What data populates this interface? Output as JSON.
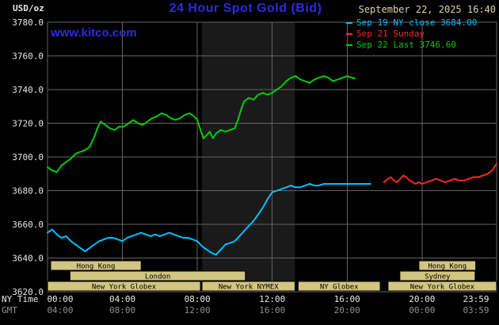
{
  "colors": {
    "background": "#000000",
    "title_blue": "#2b2bdf",
    "brand_blue": "#2b2bdf",
    "date_tan": "#d9d2ae",
    "grid": "#636363",
    "axis_text": "#e8e8e8",
    "gmt_text": "#8f8f8f",
    "session_fill": "#d2c57f",
    "session_text": "#000000",
    "shaded_band": "#1a1a1a"
  },
  "header": {
    "units_label": "USD/oz",
    "title": "24 Hour Spot Gold (Bid)",
    "datetime": "September 22, 2025 16:40",
    "watermark": "www.kitco.com"
  },
  "legend": {
    "items": [
      {
        "label": "Sep 19 NY close 3684.00",
        "color": "#00bfff"
      },
      {
        "label": "Sep 21 Sunday",
        "color": "#ff2626"
      },
      {
        "label": "Sep 22 Last 3746.60",
        "color": "#00cc00"
      }
    ]
  },
  "axis": {
    "ny_label": "NY Time",
    "gmt_label": "GMT",
    "ny_ticks": [
      "00:00",
      "04:00",
      "08:00",
      "12:00",
      "16:00",
      "20:00",
      "23:59"
    ],
    "gmt_ticks": [
      "04:00",
      "08:00",
      "12:00",
      "16:00",
      "20:00",
      "00:00",
      "03:59"
    ]
  },
  "chart_data": {
    "type": "line",
    "title": "24 Hour Spot Gold (Bid)",
    "ylabel": "USD/oz",
    "ylim": [
      3620,
      3780
    ],
    "y_ticks": [
      3620,
      3640,
      3660,
      3680,
      3700,
      3720,
      3740,
      3760,
      3780
    ],
    "x_range_minutes": [
      0,
      1439
    ],
    "x_tick_minutes": [
      0,
      240,
      480,
      720,
      960,
      1200,
      1439
    ],
    "grid": true,
    "legend_position": "top-right",
    "shaded_band_minutes": [
      495,
      793
    ],
    "series": [
      {
        "name": "Sep 19 NY close 3684.00",
        "color": "#00bfff",
        "close": 3684.0,
        "points": [
          [
            0,
            3655
          ],
          [
            15,
            3657
          ],
          [
            30,
            3654
          ],
          [
            45,
            3652
          ],
          [
            60,
            3653
          ],
          [
            75,
            3650
          ],
          [
            90,
            3648
          ],
          [
            105,
            3646
          ],
          [
            120,
            3644
          ],
          [
            135,
            3646
          ],
          [
            150,
            3648
          ],
          [
            165,
            3650
          ],
          [
            180,
            3651
          ],
          [
            195,
            3652
          ],
          [
            210,
            3652
          ],
          [
            225,
            3651
          ],
          [
            240,
            3650
          ],
          [
            255,
            3652
          ],
          [
            270,
            3653
          ],
          [
            285,
            3654
          ],
          [
            300,
            3655
          ],
          [
            315,
            3654
          ],
          [
            330,
            3653
          ],
          [
            345,
            3654
          ],
          [
            360,
            3653
          ],
          [
            375,
            3654
          ],
          [
            390,
            3655
          ],
          [
            405,
            3654
          ],
          [
            420,
            3653
          ],
          [
            435,
            3652
          ],
          [
            450,
            3652
          ],
          [
            465,
            3651
          ],
          [
            480,
            3650
          ],
          [
            495,
            3647
          ],
          [
            510,
            3645
          ],
          [
            525,
            3643
          ],
          [
            540,
            3642
          ],
          [
            555,
            3645
          ],
          [
            570,
            3648
          ],
          [
            585,
            3649
          ],
          [
            600,
            3650
          ],
          [
            615,
            3653
          ],
          [
            630,
            3656
          ],
          [
            645,
            3659
          ],
          [
            660,
            3662
          ],
          [
            675,
            3666
          ],
          [
            690,
            3670
          ],
          [
            705,
            3675
          ],
          [
            720,
            3679
          ],
          [
            735,
            3680
          ],
          [
            750,
            3681
          ],
          [
            765,
            3682
          ],
          [
            780,
            3683
          ],
          [
            795,
            3682
          ],
          [
            810,
            3682
          ],
          [
            825,
            3683
          ],
          [
            840,
            3684
          ],
          [
            855,
            3683
          ],
          [
            870,
            3683
          ],
          [
            885,
            3684
          ],
          [
            900,
            3684
          ],
          [
            915,
            3684
          ],
          [
            930,
            3684
          ],
          [
            945,
            3684
          ],
          [
            960,
            3684
          ],
          [
            980,
            3684
          ],
          [
            1000,
            3684
          ],
          [
            1020,
            3684
          ],
          [
            1035,
            3684
          ]
        ]
      },
      {
        "name": "Sep 21 Sunday",
        "color": "#ff2626",
        "points": [
          [
            1078,
            3685
          ],
          [
            1090,
            3687
          ],
          [
            1100,
            3688
          ],
          [
            1110,
            3686
          ],
          [
            1120,
            3685
          ],
          [
            1130,
            3687
          ],
          [
            1140,
            3689
          ],
          [
            1150,
            3688
          ],
          [
            1160,
            3686
          ],
          [
            1170,
            3685
          ],
          [
            1180,
            3684
          ],
          [
            1190,
            3685
          ],
          [
            1200,
            3684
          ],
          [
            1215,
            3685
          ],
          [
            1230,
            3686
          ],
          [
            1245,
            3687
          ],
          [
            1260,
            3686
          ],
          [
            1275,
            3685
          ],
          [
            1290,
            3686
          ],
          [
            1305,
            3687
          ],
          [
            1320,
            3686
          ],
          [
            1335,
            3686
          ],
          [
            1350,
            3687
          ],
          [
            1365,
            3688
          ],
          [
            1380,
            3688
          ],
          [
            1395,
            3689
          ],
          [
            1410,
            3690
          ],
          [
            1425,
            3692
          ],
          [
            1439,
            3696
          ]
        ]
      },
      {
        "name": "Sep 22 Last 3746.60",
        "color": "#00cc00",
        "last": 3746.6,
        "points": [
          [
            0,
            3694
          ],
          [
            15,
            3692
          ],
          [
            30,
            3691
          ],
          [
            45,
            3695
          ],
          [
            60,
            3697
          ],
          [
            75,
            3699
          ],
          [
            90,
            3702
          ],
          [
            105,
            3703
          ],
          [
            120,
            3704
          ],
          [
            135,
            3706
          ],
          [
            150,
            3712
          ],
          [
            160,
            3717
          ],
          [
            170,
            3721
          ],
          [
            185,
            3719
          ],
          [
            200,
            3717
          ],
          [
            215,
            3716
          ],
          [
            230,
            3718
          ],
          [
            245,
            3718
          ],
          [
            260,
            3720
          ],
          [
            275,
            3722
          ],
          [
            290,
            3720
          ],
          [
            305,
            3719
          ],
          [
            320,
            3721
          ],
          [
            335,
            3723
          ],
          [
            350,
            3724
          ],
          [
            365,
            3726
          ],
          [
            380,
            3725
          ],
          [
            395,
            3723
          ],
          [
            410,
            3722
          ],
          [
            425,
            3723
          ],
          [
            440,
            3725
          ],
          [
            455,
            3726
          ],
          [
            470,
            3724
          ],
          [
            480,
            3722
          ],
          [
            490,
            3716
          ],
          [
            500,
            3711
          ],
          [
            510,
            3713
          ],
          [
            520,
            3715
          ],
          [
            530,
            3711
          ],
          [
            540,
            3714
          ],
          [
            555,
            3716
          ],
          [
            570,
            3715
          ],
          [
            585,
            3716
          ],
          [
            600,
            3717
          ],
          [
            610,
            3722
          ],
          [
            620,
            3728
          ],
          [
            630,
            3733
          ],
          [
            645,
            3735
          ],
          [
            660,
            3734
          ],
          [
            675,
            3737
          ],
          [
            690,
            3738
          ],
          [
            705,
            3737
          ],
          [
            720,
            3738
          ],
          [
            735,
            3740
          ],
          [
            750,
            3742
          ],
          [
            765,
            3745
          ],
          [
            780,
            3747
          ],
          [
            795,
            3748
          ],
          [
            810,
            3746
          ],
          [
            825,
            3745
          ],
          [
            840,
            3744
          ],
          [
            855,
            3746
          ],
          [
            870,
            3747
          ],
          [
            885,
            3748
          ],
          [
            900,
            3747
          ],
          [
            915,
            3745
          ],
          [
            930,
            3746
          ],
          [
            945,
            3747
          ],
          [
            960,
            3748
          ],
          [
            975,
            3747
          ],
          [
            985,
            3746.6
          ]
        ]
      }
    ],
    "sessions": [
      {
        "row": 0,
        "label": "Hong Kong",
        "start": 10,
        "end": 300
      },
      {
        "row": 0,
        "label": "Hong Kong",
        "start": 1190,
        "end": 1372
      },
      {
        "row": 1,
        "label": "London",
        "start": 72,
        "end": 634
      },
      {
        "row": 1,
        "label": "Sydney",
        "start": 1129,
        "end": 1370
      },
      {
        "row": 2,
        "label": "New York Globex",
        "start": 0,
        "end": 490
      },
      {
        "row": 2,
        "label": "New York NYMEX",
        "start": 495,
        "end": 793
      },
      {
        "row": 2,
        "label": "NY Globex",
        "start": 803,
        "end": 1066
      },
      {
        "row": 2,
        "label": "New York Globex",
        "start": 1091,
        "end": 1439
      }
    ]
  }
}
